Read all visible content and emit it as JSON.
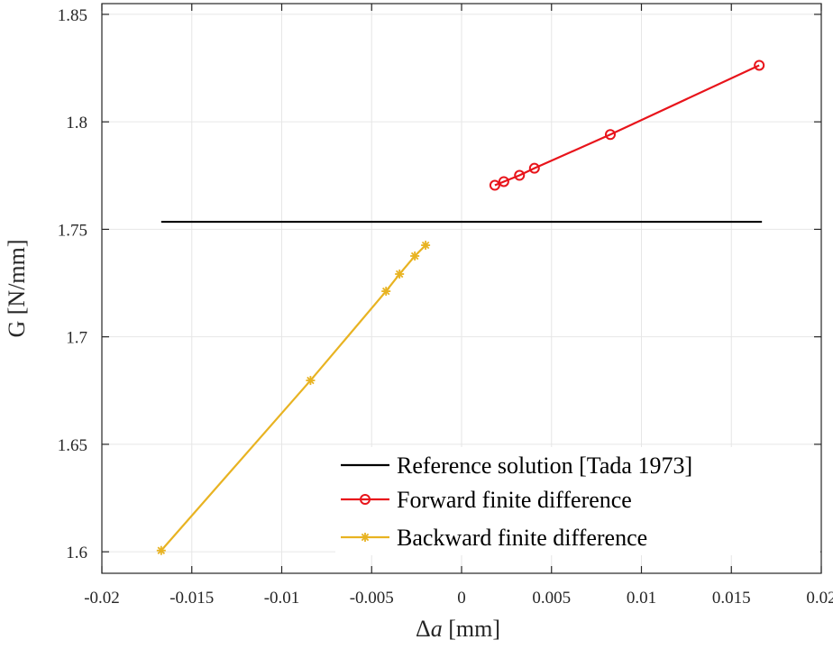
{
  "chart_data": {
    "type": "line",
    "xlabel_prefix": "Δ",
    "xlabel_var": "a",
    "xlabel_unit": " [mm]",
    "ylabel": "G [N/mm]",
    "xlim": [
      -0.02,
      0.02
    ],
    "ylim": [
      1.59,
      1.855
    ],
    "xticks": [
      -0.02,
      -0.015,
      -0.01,
      -0.005,
      0,
      0.005,
      0.01,
      0.015,
      0.02
    ],
    "xtick_labels": [
      "-0.02",
      "-0.015",
      "-0.01",
      "-0.005",
      "0",
      "0.005",
      "0.01",
      "0.015",
      "0.02"
    ],
    "yticks": [
      1.6,
      1.65,
      1.7,
      1.75,
      1.8,
      1.85
    ],
    "ytick_labels": [
      "1.6",
      "1.65",
      "1.7",
      "1.75",
      "1.8",
      "1.85"
    ],
    "grid": true,
    "legend_position": "bottom-right",
    "series": [
      {
        "name": "Reference solution [Tada 1973]",
        "color": "#000000",
        "marker": "none",
        "x": [
          -0.0167,
          0.0167
        ],
        "y": [
          1.7535,
          1.7535
        ]
      },
      {
        "name": "Forward finite difference",
        "color": "#e8141b",
        "marker": "circle",
        "x": [
          0.00185,
          0.00235,
          0.00322,
          0.00405,
          0.00827,
          0.01655
        ],
        "y": [
          1.7705,
          1.7722,
          1.7751,
          1.7784,
          1.7941,
          1.8263
        ]
      },
      {
        "name": "Backward finite difference",
        "color": "#e8b322",
        "marker": "asterisk",
        "x": [
          -0.0167,
          -0.0084,
          -0.0042,
          -0.00345,
          -0.0026,
          -0.002
        ],
        "y": [
          1.6006,
          1.6797,
          1.7212,
          1.7292,
          1.7376,
          1.7426
        ]
      }
    ]
  }
}
